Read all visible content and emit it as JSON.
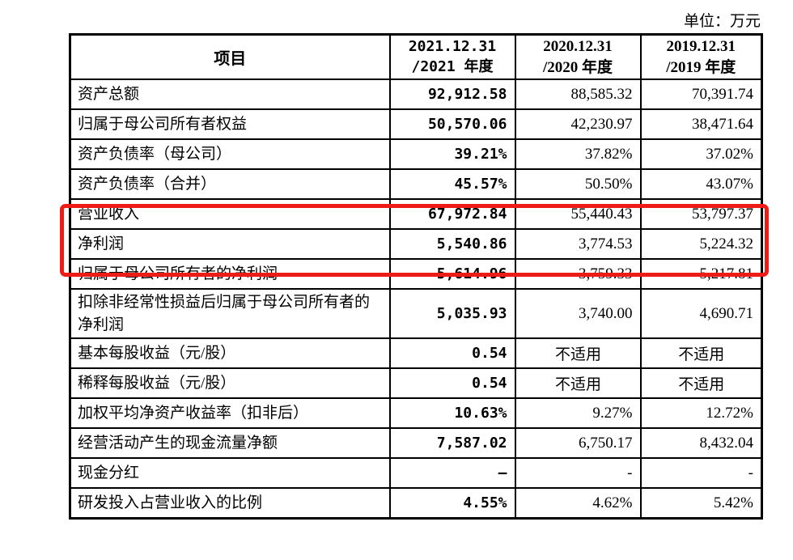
{
  "unit_label": "单位：万元",
  "highlight_color": "#EE1C17",
  "table": {
    "header": {
      "item": "项目",
      "col_2021": "2021.12.31\n/2021 年度",
      "col_2020": "2020.12.31\n/2020 年度",
      "col_2019": "2019.12.31\n/2019 年度"
    },
    "rows": [
      {
        "label": "资产总额",
        "v2021": "92,912.58",
        "v2020": "88,585.32",
        "v2019": "70,391.74",
        "highlighted": false
      },
      {
        "label": "归属于母公司所有者权益",
        "v2021": "50,570.06",
        "v2020": "42,230.97",
        "v2019": "38,471.64",
        "highlighted": false
      },
      {
        "label": "资产负债率（母公司）",
        "v2021": "39.21%",
        "v2020": "37.82%",
        "v2019": "37.02%",
        "highlighted": false
      },
      {
        "label": "资产负债率（合并）",
        "v2021": "45.57%",
        "v2020": "50.50%",
        "v2019": "43.07%",
        "highlighted": false
      },
      {
        "label": "营业收入",
        "v2021": "67,972.84",
        "v2020": "55,440.43",
        "v2019": "53,797.37",
        "highlighted": true
      },
      {
        "label": "净利润",
        "v2021": "5,540.86",
        "v2020": "3,774.53",
        "v2019": "5,224.32",
        "highlighted": true
      },
      {
        "label": "归属于母公司所有者的净利润",
        "v2021": "5,614.96",
        "v2020": "3,759.33",
        "v2019": "5,217.81",
        "highlighted": false
      },
      {
        "label": "扣除非经常性损益后归属于母公司所有者的净利润",
        "v2021": "5,035.93",
        "v2020": "3,740.00",
        "v2019": "4,690.71",
        "highlighted": false
      },
      {
        "label": "基本每股收益（元/股）",
        "v2021": "0.54",
        "v2020": "不适用",
        "v2019": "不适用",
        "highlighted": false
      },
      {
        "label": "稀释每股收益（元/股）",
        "v2021": "0.54",
        "v2020": "不适用",
        "v2019": "不适用",
        "highlighted": false
      },
      {
        "label": "加权平均净资产收益率（扣非后）",
        "v2021": "10.63%",
        "v2020": "9.27%",
        "v2019": "12.72%",
        "highlighted": false
      },
      {
        "label": "经营活动产生的现金流量净额",
        "v2021": "7,587.02",
        "v2020": "6,750.17",
        "v2019": "8,432.04",
        "highlighted": false
      },
      {
        "label": "现金分红",
        "v2021": "–",
        "v2020": "-",
        "v2019": "-",
        "highlighted": false
      },
      {
        "label": "研发投入占营业收入的比例",
        "v2021": "4.55%",
        "v2020": "4.62%",
        "v2019": "5.42%",
        "highlighted": false
      }
    ]
  }
}
